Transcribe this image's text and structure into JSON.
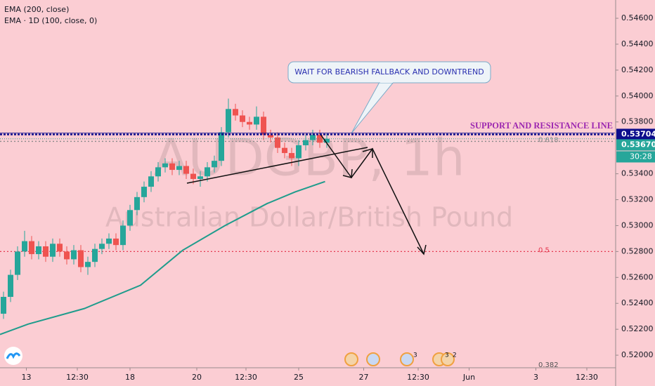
{
  "chart_data": {
    "type": "candlestick",
    "title": "AUDGBP, 1h",
    "subtitle": "Australian Dollar/British Pound",
    "indicator_legend": [
      "EMA (200, close)",
      "EMA · 1D (100, close, 0)"
    ],
    "x": [
      2,
      6,
      10,
      14,
      18,
      22,
      26,
      30,
      34,
      38,
      42,
      46,
      50,
      54,
      58,
      62,
      66,
      70,
      74,
      78,
      82,
      86,
      90,
      94,
      98,
      102,
      106,
      110,
      114,
      118,
      122,
      126,
      130,
      134,
      138,
      142,
      146,
      150,
      154,
      158,
      162,
      166,
      170,
      174,
      178,
      182,
      186
    ],
    "open": [
      0.5232,
      0.5245,
      0.5262,
      0.528,
      0.5288,
      0.5278,
      0.5284,
      0.5276,
      0.5286,
      0.528,
      0.5274,
      0.5281,
      0.5268,
      0.5272,
      0.5282,
      0.5286,
      0.529,
      0.5285,
      0.53,
      0.5312,
      0.5322,
      0.533,
      0.5338,
      0.5345,
      0.5348,
      0.5343,
      0.5346,
      0.534,
      0.5336,
      0.5338,
      0.5345,
      0.535,
      0.5372,
      0.539,
      0.5385,
      0.538,
      0.5378,
      0.5384,
      0.537,
      0.5368,
      0.536,
      0.5356,
      0.5352,
      0.5362,
      0.5366,
      0.537,
      0.5364
    ],
    "high": [
      0.5249,
      0.5266,
      0.5284,
      0.5296,
      0.5292,
      0.5288,
      0.5288,
      0.529,
      0.529,
      0.5284,
      0.5285,
      0.5285,
      0.5276,
      0.5286,
      0.529,
      0.5294,
      0.5294,
      0.5304,
      0.5316,
      0.5326,
      0.5334,
      0.5342,
      0.5349,
      0.5352,
      0.5352,
      0.535,
      0.535,
      0.5344,
      0.5342,
      0.5349,
      0.5354,
      0.5376,
      0.5398,
      0.5394,
      0.5389,
      0.5384,
      0.5392,
      0.5388,
      0.5374,
      0.5372,
      0.5364,
      0.536,
      0.5366,
      0.537,
      0.5374,
      0.5374,
      0.5371
    ],
    "low": [
      0.5228,
      0.5241,
      0.5258,
      0.5276,
      0.5274,
      0.5274,
      0.5272,
      0.5272,
      0.5276,
      0.527,
      0.527,
      0.5264,
      0.5262,
      0.5268,
      0.5278,
      0.5282,
      0.5281,
      0.5281,
      0.5296,
      0.5308,
      0.5318,
      0.5326,
      0.5334,
      0.5341,
      0.5339,
      0.5339,
      0.5336,
      0.5332,
      0.533,
      0.5334,
      0.5341,
      0.5346,
      0.5368,
      0.5381,
      0.5376,
      0.5374,
      0.5374,
      0.5366,
      0.5364,
      0.5356,
      0.5352,
      0.5346,
      0.5346,
      0.5358,
      0.5362,
      0.536,
      0.536
    ],
    "close": [
      0.5245,
      0.5262,
      0.528,
      0.5288,
      0.5278,
      0.5284,
      0.5276,
      0.5286,
      0.528,
      0.5274,
      0.5281,
      0.5268,
      0.5272,
      0.5282,
      0.5286,
      0.529,
      0.5285,
      0.53,
      0.5312,
      0.5322,
      0.533,
      0.5338,
      0.5345,
      0.5348,
      0.5343,
      0.5346,
      0.534,
      0.5336,
      0.5338,
      0.5345,
      0.535,
      0.5372,
      0.539,
      0.5385,
      0.538,
      0.5378,
      0.5384,
      0.537,
      0.5368,
      0.536,
      0.5356,
      0.5352,
      0.5362,
      0.5366,
      0.537,
      0.5364,
      0.5367
    ],
    "up_color": "#26a69a",
    "down_color": "#ef5350",
    "ema": {
      "color": "#1e9c8c",
      "x": [
        0,
        16,
        48,
        80,
        104,
        128,
        152,
        168,
        185
      ],
      "values": [
        0.5216,
        0.5224,
        0.5236,
        0.5254,
        0.5281,
        0.53,
        0.5317,
        0.5326,
        0.5334
      ]
    },
    "xlim": [
      0,
      350
    ],
    "xticks": [
      {
        "value": 15,
        "label": "13"
      },
      {
        "value": 44,
        "label": "12:30"
      },
      {
        "value": 74,
        "label": "18"
      },
      {
        "value": 112,
        "label": "20"
      },
      {
        "value": 140,
        "label": "12:30"
      },
      {
        "value": 170,
        "label": "25"
      },
      {
        "value": 207,
        "label": "27"
      },
      {
        "value": 238,
        "label": "12:30"
      },
      {
        "value": 267,
        "label": "Jun"
      },
      {
        "value": 305,
        "label": "3"
      },
      {
        "value": 334,
        "label": "12:30"
      }
    ],
    "ylim": [
      0.51903,
      0.54741
    ],
    "yticks": [
      {
        "value": 0.546,
        "label": "0.54600"
      },
      {
        "value": 0.544,
        "label": "0.54400"
      },
      {
        "value": 0.542,
        "label": "0.54200"
      },
      {
        "value": 0.54,
        "label": "0.54000"
      },
      {
        "value": 0.538,
        "label": "0.53800"
      },
      {
        "value": 0.534,
        "label": "0.53400"
      },
      {
        "value": 0.532,
        "label": "0.53200"
      },
      {
        "value": 0.53,
        "label": "0.53000"
      },
      {
        "value": 0.528,
        "label": "0.52800"
      },
      {
        "value": 0.526,
        "label": "0.52600"
      },
      {
        "value": 0.524,
        "label": "0.52400"
      },
      {
        "value": 0.522,
        "label": "0.52200"
      },
      {
        "value": 0.52,
        "label": "0.52000"
      }
    ],
    "price_lines": [
      {
        "value": 0.53704,
        "label": "0.53704",
        "color": "#0d0d8c"
      },
      {
        "value": 0.5367,
        "label": "0.53670",
        "color": "#26a69a",
        "countdown": "30:28"
      }
    ],
    "fib_levels": [
      {
        "value": 0.5365,
        "label": "0.618",
        "color": "#8a8a8a"
      },
      {
        "value": 0.528,
        "label": "0.5",
        "color": "#e53950"
      },
      {
        "value": 0.51913,
        "label": "0.382"
      }
    ],
    "support_label": "SUPPORT AND RESISTANCE LINE",
    "callout": "WAIT FOR BEARISH FALLBACK AND DOWNTREND",
    "event_counts": [
      3,
      3,
      2
    ]
  }
}
